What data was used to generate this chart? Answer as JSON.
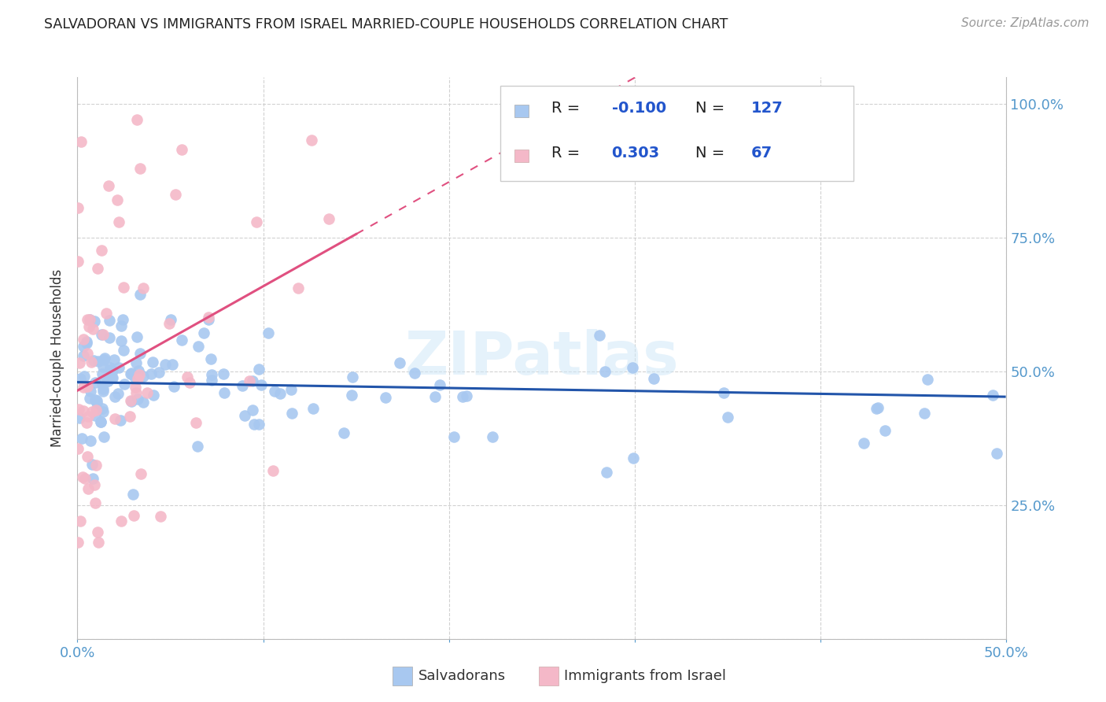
{
  "title": "SALVADORAN VS IMMIGRANTS FROM ISRAEL MARRIED-COUPLE HOUSEHOLDS CORRELATION CHART",
  "source": "Source: ZipAtlas.com",
  "ylabel": "Married-couple Households",
  "xlim": [
    0.0,
    0.5
  ],
  "ylim": [
    0.0,
    1.05
  ],
  "blue_R": -0.1,
  "blue_N": 127,
  "pink_R": 0.303,
  "pink_N": 67,
  "legend_label_blue": "Salvadorans",
  "legend_label_pink": "Immigrants from Israel",
  "watermark": "ZIPatlas",
  "blue_color": "#a8c8f0",
  "pink_color": "#f4b8c8",
  "blue_line_color": "#2255aa",
  "pink_line_color": "#e05080",
  "title_color": "#222222",
  "axis_tick_color": "#5599cc",
  "legend_value_color": "#2255cc",
  "legend_label_color": "#333333",
  "source_color": "#999999",
  "watermark_color": "#d0e8f8",
  "grid_color": "#cccccc",
  "ytick_positions": [
    0.0,
    0.25,
    0.5,
    0.75,
    1.0
  ],
  "ytick_labels": [
    "",
    "25.0%",
    "50.0%",
    "75.0%",
    "100.0%"
  ],
  "xtick_positions": [
    0.0,
    0.1,
    0.2,
    0.3,
    0.4,
    0.5
  ],
  "xtick_labels": [
    "0.0%",
    "",
    "",
    "",
    "",
    "50.0%"
  ]
}
